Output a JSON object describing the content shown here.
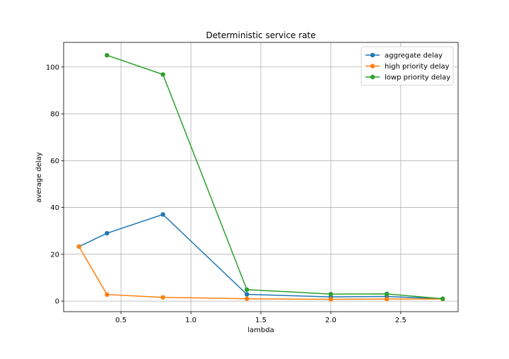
{
  "chart_data": {
    "type": "line",
    "title": "Deterministic service rate",
    "xlabel": "lambda",
    "ylabel": "average delay",
    "xlim": [
      0.09,
      2.91
    ],
    "ylim": [
      -4.5,
      110.5
    ],
    "grid": true,
    "legend_position": "top-right",
    "xticks": [
      0.5,
      1.0,
      1.5,
      2.0,
      2.5
    ],
    "xtick_labels": [
      "0.5",
      "1.0",
      "1.5",
      "2.0",
      "2.5"
    ],
    "yticks": [
      0,
      20,
      40,
      60,
      80,
      100
    ],
    "ytick_labels": [
      "0",
      "20",
      "40",
      "60",
      "80",
      "100"
    ],
    "series": [
      {
        "name": "aggregate delay",
        "color": "#1f77b4",
        "x": [
          0.2,
          0.4,
          0.8,
          1.4,
          2.0,
          2.4,
          2.8
        ],
        "y": [
          23.3,
          29.0,
          37.0,
          2.9,
          1.8,
          2.0,
          1.0
        ]
      },
      {
        "name": "high priority delay",
        "color": "#ff7f0e",
        "x": [
          0.2,
          0.4,
          0.8,
          1.4,
          2.0,
          2.4,
          2.8
        ],
        "y": [
          23.3,
          2.8,
          1.6,
          1.0,
          0.8,
          0.9,
          0.9
        ]
      },
      {
        "name": "lowp priority delay",
        "color": "#2ca02c",
        "x": [
          0.4,
          0.8,
          1.4,
          2.0,
          2.4,
          2.8
        ],
        "y": [
          105.0,
          96.8,
          4.9,
          3.0,
          3.1,
          1.0
        ]
      }
    ]
  }
}
